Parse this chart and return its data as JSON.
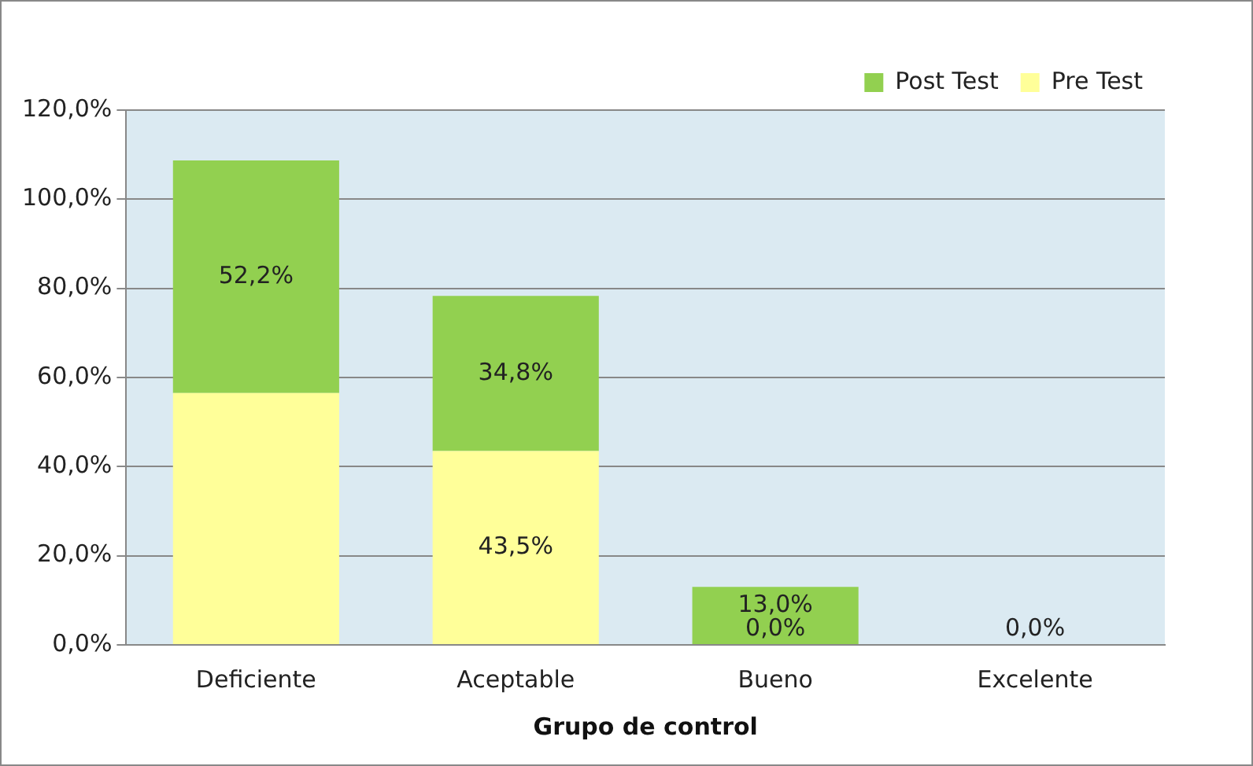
{
  "chart_data": {
    "type": "bar",
    "stacked": true,
    "xlabel": "Grupo de control",
    "categories": [
      "Deficiente",
      "Aceptable",
      "Bueno",
      "Excelente"
    ],
    "series": [
      {
        "name": "Pre Test",
        "color": "#ffff99",
        "values": [
          56.5,
          43.5,
          0,
          0
        ],
        "value_labels": [
          null,
          "43,5%",
          "0,0%",
          "0,0%"
        ]
      },
      {
        "name": "Post Test",
        "color": "#92d050",
        "values": [
          52.2,
          34.8,
          13,
          0
        ],
        "value_labels": [
          "52,2%",
          "34,8%",
          "13,0%",
          null
        ]
      }
    ],
    "ylim": [
      0,
      120
    ],
    "yticks": [
      {
        "value": 0,
        "label": "0,0%"
      },
      {
        "value": 20,
        "label": "20,0%"
      },
      {
        "value": 40,
        "label": "40,0%"
      },
      {
        "value": 60,
        "label": "60,0%"
      },
      {
        "value": 80,
        "label": "80,0%"
      },
      {
        "value": 100,
        "label": "100,0%"
      },
      {
        "value": 120,
        "label": "120,0%"
      }
    ],
    "grid": "y",
    "legend": "top right"
  }
}
